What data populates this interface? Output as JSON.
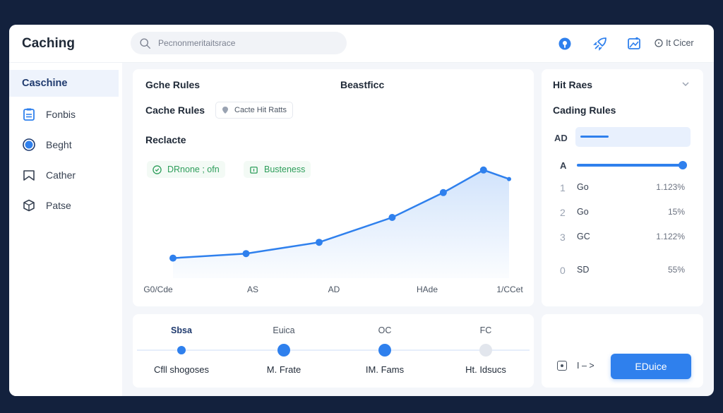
{
  "app": {
    "title": "Caching"
  },
  "search": {
    "placeholder": "Pecnonmeritaitsrace"
  },
  "header": {
    "user_label": "It Cicer"
  },
  "sidebar": {
    "title": "Caschine",
    "items": [
      {
        "label": "Fonbis",
        "icon": "badge-icon"
      },
      {
        "label": "Beght",
        "icon": "radio-icon"
      },
      {
        "label": "Cather",
        "icon": "bookmark-icon"
      },
      {
        "label": "Patse",
        "icon": "box-icon"
      }
    ]
  },
  "chart_card": {
    "title": "Gche Rules",
    "subtitle_right": "Beastficc",
    "rules_label": "Cache Rules",
    "tag_label": "Cacte Hit Ratts",
    "section_label": "Reclacte",
    "legend": [
      {
        "label": "DRnone ; ofn",
        "color": "#2e9e5b"
      },
      {
        "label": "Busteness",
        "color": "#2e9e5b"
      }
    ]
  },
  "chart_data": {
    "type": "area",
    "categories": [
      "G0/Cde",
      "AS",
      "AD",
      "HAde",
      "1/CCet"
    ],
    "x": [
      0,
      1,
      2,
      3,
      3.7,
      4.25,
      4.6
    ],
    "values": [
      14,
      18,
      28,
      50,
      72,
      92,
      84
    ],
    "ylim": [
      0,
      100
    ],
    "grid": false,
    "color": "#2f80ed"
  },
  "steps": [
    {
      "top": "Sbsa",
      "bottom": "Cfll shogoses",
      "state": "active"
    },
    {
      "top": "Euica",
      "bottom": "M. Frate",
      "state": "filled"
    },
    {
      "top": "OC",
      "bottom": "IM. Fams",
      "state": "filled"
    },
    {
      "top": "FC",
      "bottom": "Ht. Idsucs",
      "state": "inactive"
    }
  ],
  "hits_card": {
    "title": "Hit Raes",
    "subtitle": "Cading Rules",
    "input_label": "AD",
    "slider_label": "A",
    "slider_value": 1.0,
    "rows": [
      {
        "num": "1",
        "name": "Go",
        "value": "1.123%"
      },
      {
        "num": "2",
        "name": "Go",
        "value": "15%"
      },
      {
        "num": "3",
        "name": "GC",
        "value": "1.122%"
      },
      {
        "num": "0",
        "name": "SD",
        "value": "55%"
      }
    ]
  },
  "action_card": {
    "pager_label": "I – >",
    "button_label": "EDuice"
  },
  "colors": {
    "accent": "#2f80ed",
    "green": "#2e9e5b",
    "muted": "#6b7280"
  }
}
